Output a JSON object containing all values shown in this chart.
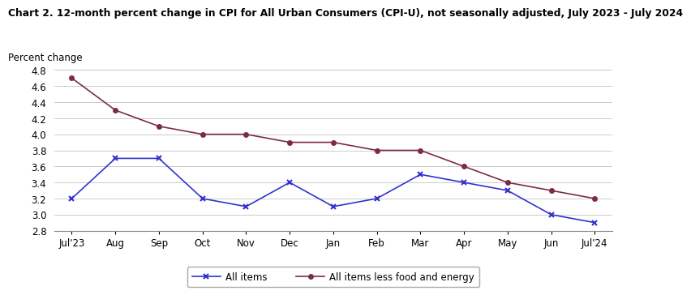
{
  "title": "Chart 2. 12-month percent change in CPI for All Urban Consumers (CPI-U), not seasonally adjusted, July 2023 - July 2024",
  "ylabel": "Percent change",
  "x_labels": [
    "Jul'23",
    "Aug",
    "Sep",
    "Oct",
    "Nov",
    "Dec",
    "Jan",
    "Feb",
    "Mar",
    "Apr",
    "May",
    "Jun",
    "Jul'24"
  ],
  "all_items": [
    3.2,
    3.7,
    3.7,
    3.2,
    3.1,
    3.4,
    3.1,
    3.2,
    3.5,
    3.4,
    3.3,
    3.0,
    2.9
  ],
  "core_items": [
    4.7,
    4.3,
    4.1,
    4.0,
    4.0,
    3.9,
    3.9,
    3.8,
    3.8,
    3.6,
    3.4,
    3.3,
    3.2
  ],
  "all_items_color": "#3333cc",
  "core_items_color": "#7b2d42",
  "ylim": [
    2.8,
    4.8
  ],
  "yticks": [
    2.8,
    3.0,
    3.2,
    3.4,
    3.6,
    3.8,
    4.0,
    4.2,
    4.4,
    4.6,
    4.8
  ],
  "legend_all_items": "All items",
  "legend_core_items": "All items less food and energy",
  "background_color": "#ffffff",
  "grid_color": "#cccccc",
  "title_fontsize": 8.8,
  "label_fontsize": 8.5,
  "tick_fontsize": 8.5,
  "legend_fontsize": 8.5
}
